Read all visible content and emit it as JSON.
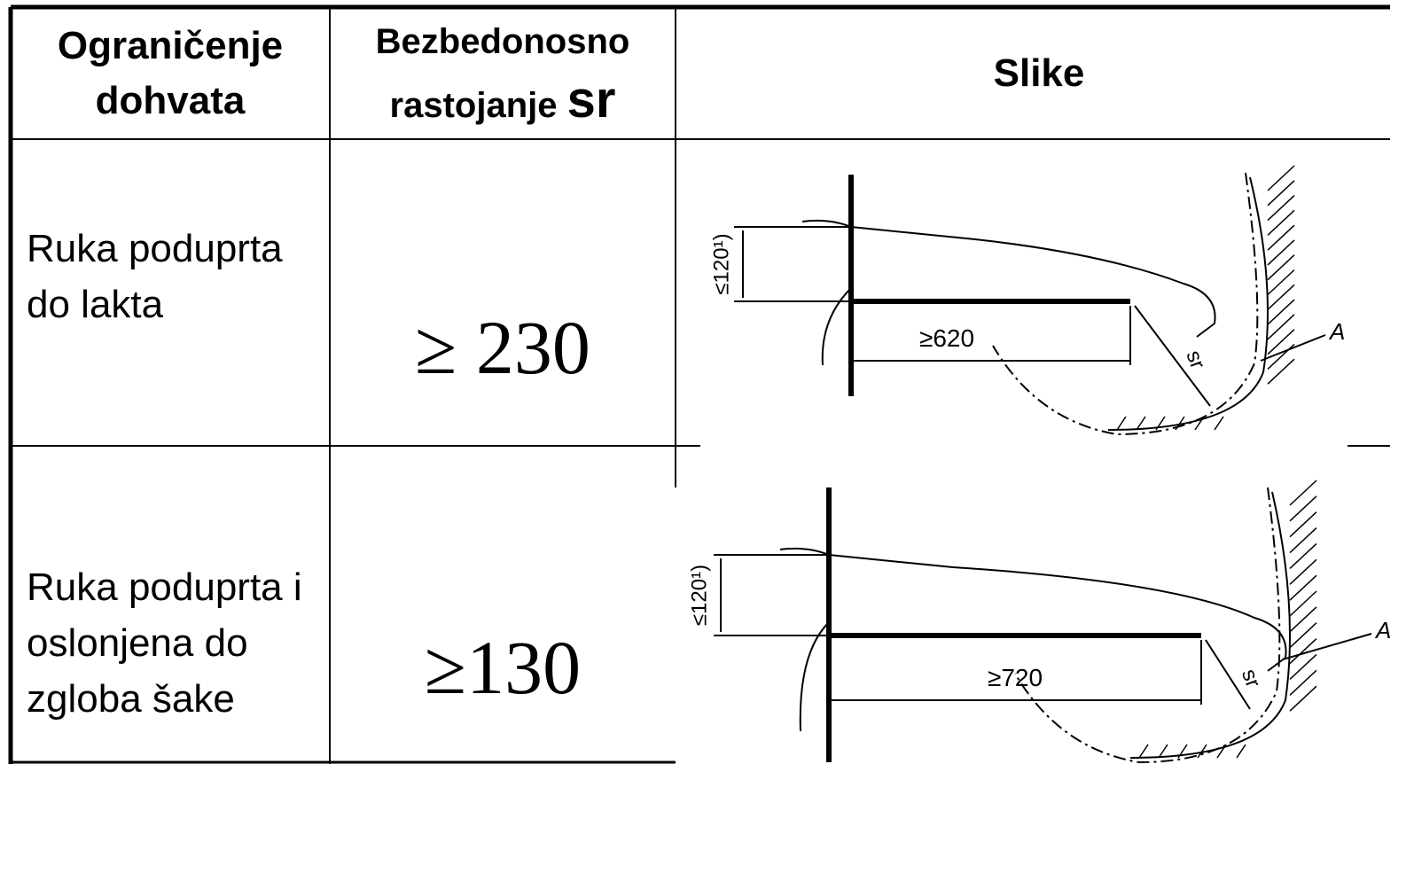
{
  "header": {
    "limit": "Ograničenje dohvata",
    "distance": "Bezbedonosno rastojanje",
    "distance_symbol": "sr",
    "figures": "Slike"
  },
  "rows": [
    {
      "limit": "Ruka poduprta do lakta",
      "distance": "≥ 230",
      "figure": {
        "height": "≤120¹)",
        "length": "≥620",
        "sr": "sr",
        "marker": "A"
      }
    },
    {
      "limit": "Ruka poduprta i oslonjena do zgloba šake",
      "distance": "≥130",
      "figure": {
        "height": "≤120¹)",
        "length": "≥720",
        "sr": "sr",
        "marker": "A"
      }
    }
  ]
}
